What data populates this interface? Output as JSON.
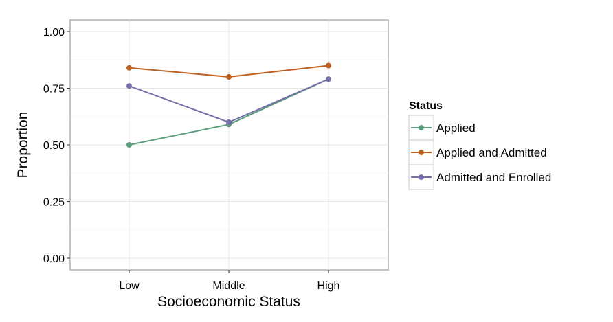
{
  "chart_data": {
    "type": "line",
    "title": "",
    "xlabel": "Socioeconomic Status",
    "ylabel": "Proportion",
    "categories": [
      "Low",
      "Middle",
      "High"
    ],
    "ylim": [
      0,
      1
    ],
    "yticks": [
      "0.00",
      "0.25",
      "0.50",
      "0.75",
      "1.00"
    ],
    "grid": true,
    "legend": {
      "title": "Status",
      "placement": "right"
    },
    "series": [
      {
        "name": "Applied",
        "color": "#5b9e7c",
        "values": [
          0.5,
          0.59,
          0.79
        ]
      },
      {
        "name": "Applied and Admitted",
        "color": "#c0601f",
        "values": [
          0.84,
          0.8,
          0.85
        ]
      },
      {
        "name": "Admitted and Enrolled",
        "color": "#7670aa",
        "values": [
          0.76,
          0.6,
          0.79
        ]
      }
    ]
  }
}
